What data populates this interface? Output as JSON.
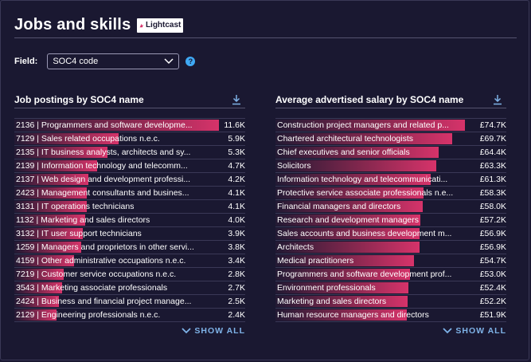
{
  "header": {
    "title": "Jobs and skills",
    "logo_text": "Lightcast"
  },
  "field": {
    "label": "Field:",
    "selected": "SOC4 code",
    "help_glyph": "?"
  },
  "left": {
    "title": "Job postings by SOC4 name",
    "show_all": "SHOW ALL",
    "rows": [
      {
        "label": "2136 | Programmers and software developme...",
        "value": "11.6K",
        "fraction": 1.0
      },
      {
        "label": "7129 | Sales related occupations n.e.c.",
        "value": "5.9K",
        "fraction": 0.509
      },
      {
        "label": "2135 | IT business analysts, architects and sy...",
        "value": "5.3K",
        "fraction": 0.457
      },
      {
        "label": "2139 | Information technology and telecomm...",
        "value": "4.7K",
        "fraction": 0.405
      },
      {
        "label": "2137 | Web design and development professi...",
        "value": "4.2K",
        "fraction": 0.362
      },
      {
        "label": "2423 | Management consultants and busines...",
        "value": "4.1K",
        "fraction": 0.353
      },
      {
        "label": "3131 | IT operations technicians",
        "value": "4.1K",
        "fraction": 0.353
      },
      {
        "label": "1132 | Marketing and sales directors",
        "value": "4.0K",
        "fraction": 0.345
      },
      {
        "label": "3132 | IT user support technicians",
        "value": "3.9K",
        "fraction": 0.336
      },
      {
        "label": "1259 | Managers and proprietors in other servi...",
        "value": "3.8K",
        "fraction": 0.328
      },
      {
        "label": "4159 | Other administrative occupations n.e.c.",
        "value": "3.4K",
        "fraction": 0.293
      },
      {
        "label": "7219 | Customer service occupations n.e.c.",
        "value": "2.8K",
        "fraction": 0.241
      },
      {
        "label": "3543 | Marketing associate professionals",
        "value": "2.7K",
        "fraction": 0.233
      },
      {
        "label": "2424 | Business and financial project manage...",
        "value": "2.5K",
        "fraction": 0.216
      },
      {
        "label": "2129 | Engineering professionals n.e.c.",
        "value": "2.4K",
        "fraction": 0.207
      }
    ]
  },
  "right": {
    "title": "Average advertised salary by SOC4 name",
    "show_all": "SHOW ALL",
    "rows": [
      {
        "label": "Construction project managers and related p...",
        "value": "£74.7K",
        "fraction": 1.0
      },
      {
        "label": "Chartered architectural technologists",
        "value": "£69.7K",
        "fraction": 0.933
      },
      {
        "label": "Chief executives and senior officials",
        "value": "£64.4K",
        "fraction": 0.862
      },
      {
        "label": "Solicitors",
        "value": "£63.3K",
        "fraction": 0.847
      },
      {
        "label": "Information technology and telecommunicati...",
        "value": "£61.3K",
        "fraction": 0.821
      },
      {
        "label": "Protective service associate professionals n.e...",
        "value": "£58.3K",
        "fraction": 0.78
      },
      {
        "label": "Financial managers and directors",
        "value": "£58.0K",
        "fraction": 0.776
      },
      {
        "label": "Research and development managers",
        "value": "£57.2K",
        "fraction": 0.766
      },
      {
        "label": "Sales accounts and business development m...",
        "value": "£56.9K",
        "fraction": 0.762
      },
      {
        "label": "Architects",
        "value": "£56.9K",
        "fraction": 0.762
      },
      {
        "label": "Medical practitioners",
        "value": "£54.7K",
        "fraction": 0.732
      },
      {
        "label": "Programmers and software development prof...",
        "value": "£53.0K",
        "fraction": 0.71
      },
      {
        "label": "Environment professionals",
        "value": "£52.4K",
        "fraction": 0.701
      },
      {
        "label": "Marketing and sales directors",
        "value": "£52.2K",
        "fraction": 0.699
      },
      {
        "label": "Human resource managers and directors",
        "value": "£51.9K",
        "fraction": 0.695
      }
    ]
  },
  "icons": {
    "dropdown": "chevron-down-icon",
    "help": "help-icon",
    "download": "download-icon",
    "show_all": "chevron-down-icon",
    "logo": "lightcast-logo-icon"
  },
  "colors": {
    "background": "#1a1831",
    "bar_accent": "#d6336a",
    "link": "#7fb3e8",
    "help": "#3fa9f5"
  }
}
